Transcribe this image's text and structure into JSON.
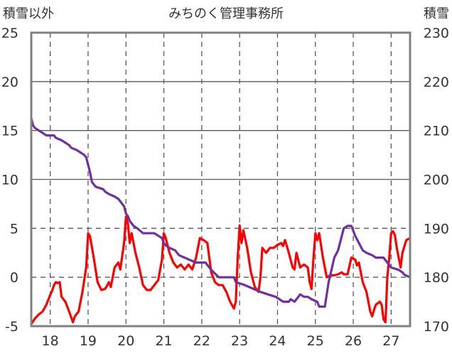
{
  "chart_data": {
    "type": "line",
    "title": "みちのく管理事務所",
    "left_axis_label": "積雪以外",
    "right_axis_label": "積雪",
    "y_left": {
      "range": [
        -5,
        25
      ],
      "ticks": [
        -5,
        0,
        5,
        10,
        15,
        20,
        25
      ]
    },
    "y_right": {
      "range": [
        170,
        230
      ],
      "ticks": [
        170,
        180,
        190,
        200,
        210,
        220,
        230
      ]
    },
    "x": {
      "range": [
        17.5,
        27.5
      ],
      "ticks": [
        18,
        19,
        20,
        21,
        22,
        23,
        24,
        25,
        26,
        27
      ]
    },
    "grid": {
      "vertical": "dashed",
      "horizontal_dashed": [
        0,
        5
      ]
    },
    "colors": {
      "temperature": "#ff0000",
      "snow_depth": "#7030a0",
      "grid": "#595959",
      "frame": "#808080"
    },
    "series": [
      {
        "key": "temperature",
        "axis": "left",
        "color": "#ff0000",
        "points": [
          [
            17.5,
            -4.8
          ],
          [
            17.6,
            -4.2
          ],
          [
            17.7,
            -3.8
          ],
          [
            17.8,
            -3.5
          ],
          [
            17.9,
            -2.8
          ],
          [
            18.0,
            -1.8
          ],
          [
            18.05,
            -1.4
          ],
          [
            18.1,
            -0.8
          ],
          [
            18.15,
            -0.5
          ],
          [
            18.2,
            -0.6
          ],
          [
            18.25,
            -0.5
          ],
          [
            18.3,
            -2.0
          ],
          [
            18.4,
            -2.5
          ],
          [
            18.5,
            -3.5
          ],
          [
            18.6,
            -4.6
          ],
          [
            18.65,
            -4.0
          ],
          [
            18.75,
            -3.5
          ],
          [
            18.85,
            -1.5
          ],
          [
            18.95,
            1.0
          ],
          [
            19.0,
            4.5
          ],
          [
            19.05,
            4.2
          ],
          [
            19.15,
            2.0
          ],
          [
            19.25,
            -0.5
          ],
          [
            19.35,
            -1.3
          ],
          [
            19.45,
            -1.2
          ],
          [
            19.55,
            -0.5
          ],
          [
            19.6,
            -1.0
          ],
          [
            19.7,
            1.0
          ],
          [
            19.8,
            1.5
          ],
          [
            19.85,
            0.8
          ],
          [
            19.95,
            3.5
          ],
          [
            20.0,
            6.2
          ],
          [
            20.05,
            5.5
          ],
          [
            20.1,
            3.5
          ],
          [
            20.15,
            4.5
          ],
          [
            20.25,
            2.5
          ],
          [
            20.35,
            1.0
          ],
          [
            20.45,
            -0.8
          ],
          [
            20.55,
            -1.3
          ],
          [
            20.65,
            -1.3
          ],
          [
            20.75,
            -0.8
          ],
          [
            20.85,
            -0.3
          ],
          [
            20.95,
            1.8
          ],
          [
            21.0,
            4.5
          ],
          [
            21.05,
            4.0
          ],
          [
            21.15,
            2.5
          ],
          [
            21.25,
            1.5
          ],
          [
            21.35,
            1.0
          ],
          [
            21.45,
            1.3
          ],
          [
            21.55,
            0.8
          ],
          [
            21.65,
            1.3
          ],
          [
            21.75,
            0.8
          ],
          [
            21.85,
            2.0
          ],
          [
            21.95,
            4.0
          ],
          [
            22.05,
            3.8
          ],
          [
            22.15,
            3.5
          ],
          [
            22.25,
            0.5
          ],
          [
            22.35,
            -0.5
          ],
          [
            22.45,
            -0.8
          ],
          [
            22.55,
            -0.8
          ],
          [
            22.65,
            -1.5
          ],
          [
            22.75,
            -2.5
          ],
          [
            22.85,
            -3.2
          ],
          [
            22.9,
            -2.5
          ],
          [
            22.95,
            2.0
          ],
          [
            23.0,
            5.3
          ],
          [
            23.05,
            3.5
          ],
          [
            23.1,
            4.8
          ],
          [
            23.2,
            3.0
          ],
          [
            23.3,
            0.5
          ],
          [
            23.4,
            -1.0
          ],
          [
            23.5,
            -1.5
          ],
          [
            23.55,
            0.0
          ],
          [
            23.6,
            3.0
          ],
          [
            23.7,
            2.5
          ],
          [
            23.8,
            3.0
          ],
          [
            23.9,
            3.0
          ],
          [
            24.0,
            3.3
          ],
          [
            24.1,
            3.5
          ],
          [
            24.15,
            3.2
          ],
          [
            24.2,
            3.8
          ],
          [
            24.3,
            2.5
          ],
          [
            24.4,
            1.0
          ],
          [
            24.45,
            0.8
          ],
          [
            24.5,
            2.5
          ],
          [
            24.6,
            1.0
          ],
          [
            24.7,
            1.3
          ],
          [
            24.8,
            1.0
          ],
          [
            24.85,
            -0.5
          ],
          [
            24.9,
            -1.2
          ],
          [
            24.95,
            2.0
          ],
          [
            25.0,
            4.5
          ],
          [
            25.05,
            3.8
          ],
          [
            25.1,
            4.5
          ],
          [
            25.2,
            2.0
          ],
          [
            25.3,
            0.0
          ],
          [
            25.4,
            0.2
          ],
          [
            25.5,
            0.2
          ],
          [
            25.6,
            0.3
          ],
          [
            25.7,
            0.5
          ],
          [
            25.75,
            0.3
          ],
          [
            25.85,
            0.3
          ],
          [
            25.95,
            2.0
          ],
          [
            26.05,
            1.8
          ],
          [
            26.1,
            1.2
          ],
          [
            26.15,
            1.5
          ],
          [
            26.25,
            -0.5
          ],
          [
            26.35,
            -1.5
          ],
          [
            26.45,
            -3.5
          ],
          [
            26.5,
            -4.0
          ],
          [
            26.55,
            -3.3
          ],
          [
            26.6,
            -2.8
          ],
          [
            26.7,
            -2.5
          ],
          [
            26.75,
            -2.8
          ],
          [
            26.8,
            -4.3
          ],
          [
            26.85,
            -4.6
          ],
          [
            26.9,
            0.0
          ],
          [
            26.95,
            2.0
          ],
          [
            27.0,
            4.5
          ],
          [
            27.05,
            4.7
          ],
          [
            27.1,
            4.3
          ],
          [
            27.15,
            3.0
          ],
          [
            27.2,
            2.0
          ],
          [
            27.25,
            1.0
          ],
          [
            27.3,
            2.5
          ],
          [
            27.4,
            3.8
          ],
          [
            27.5,
            4.0
          ]
        ]
      },
      {
        "key": "snow_depth",
        "axis": "right",
        "color": "#7030a0",
        "points": [
          [
            17.5,
            212.5
          ],
          [
            17.55,
            211.0
          ],
          [
            17.6,
            210.5
          ],
          [
            17.7,
            210.0
          ],
          [
            17.8,
            209.5
          ],
          [
            17.9,
            209.0
          ],
          [
            18.1,
            209.0
          ],
          [
            18.15,
            208.5
          ],
          [
            18.3,
            208.0
          ],
          [
            18.4,
            207.5
          ],
          [
            18.5,
            207.0
          ],
          [
            18.55,
            206.5
          ],
          [
            18.7,
            206.0
          ],
          [
            18.8,
            205.5
          ],
          [
            18.9,
            205.0
          ],
          [
            18.95,
            204.5
          ],
          [
            19.0,
            203.0
          ],
          [
            19.05,
            201.5
          ],
          [
            19.1,
            199.5
          ],
          [
            19.15,
            199.0
          ],
          [
            19.2,
            198.5
          ],
          [
            19.4,
            198.0
          ],
          [
            19.45,
            197.5
          ],
          [
            19.55,
            197.0
          ],
          [
            19.7,
            196.5
          ],
          [
            19.8,
            196.0
          ],
          [
            19.85,
            195.5
          ],
          [
            19.95,
            194.5
          ],
          [
            20.0,
            193.0
          ],
          [
            20.05,
            192.5
          ],
          [
            20.1,
            191.5
          ],
          [
            20.2,
            190.5
          ],
          [
            20.3,
            190.0
          ],
          [
            20.45,
            189.0
          ],
          [
            20.75,
            189.0
          ],
          [
            20.85,
            188.5
          ],
          [
            20.95,
            188.0
          ],
          [
            21.0,
            187.0
          ],
          [
            21.05,
            186.5
          ],
          [
            21.15,
            186.0
          ],
          [
            21.3,
            185.5
          ],
          [
            21.4,
            184.5
          ],
          [
            21.55,
            184.0
          ],
          [
            21.7,
            183.5
          ],
          [
            21.85,
            183.0
          ],
          [
            22.1,
            183.0
          ],
          [
            22.15,
            182.5
          ],
          [
            22.25,
            181.5
          ],
          [
            22.45,
            180.0
          ],
          [
            22.85,
            180.0
          ],
          [
            22.9,
            179.0
          ],
          [
            23.1,
            178.5
          ],
          [
            23.25,
            178.0
          ],
          [
            23.4,
            177.5
          ],
          [
            23.55,
            177.0
          ],
          [
            23.75,
            176.5
          ],
          [
            23.95,
            176.0
          ],
          [
            24.05,
            175.5
          ],
          [
            24.15,
            175.0
          ],
          [
            24.3,
            175.0
          ],
          [
            24.35,
            175.5
          ],
          [
            24.45,
            175.0
          ],
          [
            24.5,
            175.5
          ],
          [
            24.55,
            176.0
          ],
          [
            24.6,
            176.5
          ],
          [
            24.7,
            176.0
          ],
          [
            24.8,
            176.0
          ],
          [
            24.9,
            175.5
          ],
          [
            25.05,
            175.0
          ],
          [
            25.1,
            174.0
          ],
          [
            25.25,
            174.0
          ],
          [
            25.35,
            179.0
          ],
          [
            25.5,
            184.0
          ],
          [
            25.6,
            185.5
          ],
          [
            25.75,
            190.0
          ],
          [
            25.85,
            190.5
          ],
          [
            25.95,
            190.5
          ],
          [
            26.05,
            188.5
          ],
          [
            26.15,
            187.0
          ],
          [
            26.25,
            185.5
          ],
          [
            26.35,
            185.0
          ],
          [
            26.5,
            184.5
          ],
          [
            26.6,
            184.0
          ],
          [
            26.8,
            184.0
          ],
          [
            26.9,
            183.0
          ],
          [
            27.0,
            182.0
          ],
          [
            27.2,
            181.5
          ],
          [
            27.3,
            181.0
          ],
          [
            27.35,
            180.5
          ],
          [
            27.5,
            180.0
          ]
        ]
      }
    ]
  }
}
